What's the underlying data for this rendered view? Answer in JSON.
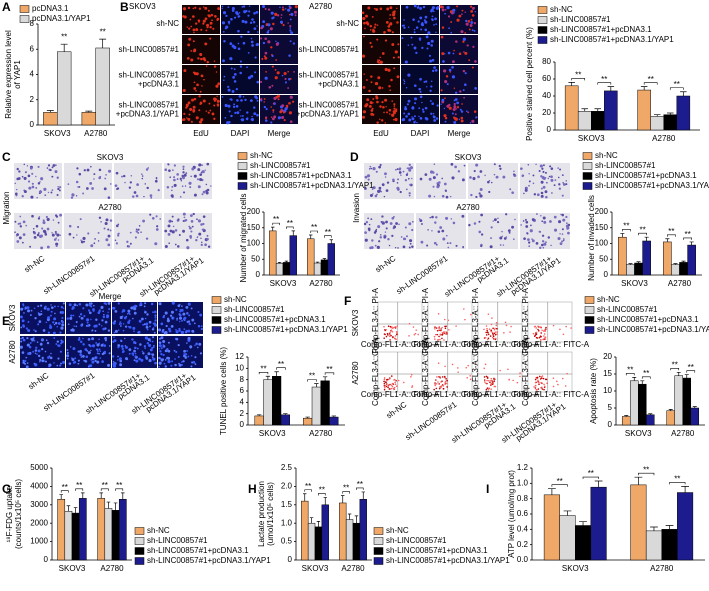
{
  "panels": [
    "A",
    "B",
    "C",
    "D",
    "E",
    "F",
    "G",
    "H",
    "I"
  ],
  "images": {
    "B": {
      "cell_lines": [
        "SKOV3",
        "A2780"
      ],
      "rows": [
        [
          "sh-NC"
        ],
        [
          "sh-LINC00857#1"
        ],
        [
          "sh-LINC00857#1",
          "+pcDNA3.1"
        ],
        [
          "sh-LINC00857#1",
          "+pcDNA3.1/YAP1"
        ]
      ],
      "columns": [
        "EdU",
        "DAPI",
        "Merge"
      ]
    },
    "C": {
      "side_label": "Migration",
      "cell_lines": [
        "SKOV3",
        "A2780"
      ],
      "columns": [
        [
          "sh-NC"
        ],
        [
          "sh-LINC00857#1"
        ],
        [
          "sh-LINC00857#1+",
          "pcDNA3.1"
        ],
        [
          "sh-LINC00857#1+",
          "pcDNA3.1/YAP1"
        ]
      ]
    },
    "D": {
      "side_label": "Invasion",
      "cell_lines": [
        "SKOV3",
        "A2780"
      ],
      "columns": [
        [
          "sh-NC"
        ],
        [
          "sh-LINC00857#1"
        ],
        [
          "sh-LINC00857#1+",
          "pcDNA3.1"
        ],
        [
          "sh-LINC00857#1+",
          "pcDNA3.1/YAP1"
        ]
      ]
    },
    "E": {
      "title": "Merge",
      "cell_lines": [
        "SKOV3",
        "A2780"
      ],
      "columns": [
        [
          "sh-NC"
        ],
        [
          "sh-LINC00857#1"
        ],
        [
          "sh-LINC00857#1+",
          "pcDNA3.1"
        ],
        [
          "sh-LINC00857#1+",
          "pcDNA3.1/YAP1"
        ]
      ]
    },
    "F": {
      "cell_lines": [
        "SKOV3",
        "A2780"
      ],
      "x_axis": "Comp-FL1-A:: FITC-A",
      "y_axis": "Comp-FL3-A:: PI-A",
      "columns": [
        [
          "sh-NC"
        ],
        [
          "sh-LINC00857#1"
        ],
        [
          "sh-LINC00857#1+",
          "pcDNA3.1"
        ],
        [
          "sh-LINC00857#1+",
          "pcDNA3.1/YAP1"
        ]
      ]
    }
  },
  "chart_data": [
    {
      "type": "bar",
      "ylabel": [
        "Relative expression level",
        "of YAP1"
      ],
      "categories": [
        "SKOV3",
        "A2780"
      ],
      "series": [
        {
          "name": "pcDNA3.1",
          "color": "#f0a868",
          "values": [
            1.0,
            1.0
          ],
          "errors": [
            0.15,
            0.1
          ]
        },
        {
          "name": "pcDNA3.1/YAP1",
          "color": "#d9d9d9",
          "values": [
            5.8,
            6.1
          ],
          "errors": [
            0.6,
            0.7
          ]
        }
      ],
      "ylim": [
        0,
        8
      ],
      "yticks": [
        0,
        2,
        4,
        6,
        8
      ],
      "significance": [
        "**",
        "**"
      ]
    },
    {
      "type": "bar",
      "ylabel": [
        "Positive stained cell percent (%)"
      ],
      "categories": [
        "SKOV3",
        "A2780"
      ],
      "series": [
        {
          "name": "sh-NC",
          "color": "#f0a868",
          "values": [
            52,
            47
          ],
          "errors": [
            4,
            4
          ]
        },
        {
          "name": "sh-LINC00857#1",
          "color": "#d9d9d9",
          "values": [
            22,
            16
          ],
          "errors": [
            3,
            2
          ]
        },
        {
          "name": "sh-LINC00857#1+pcDNA3.1",
          "color": "#000000",
          "values": [
            22,
            18
          ],
          "errors": [
            3,
            2
          ]
        },
        {
          "name": "sh-LINC00857#1+pcDNA3.1/YAP1",
          "color": "#1c1c8f",
          "values": [
            46,
            40
          ],
          "errors": [
            5,
            5
          ]
        }
      ],
      "ylim": [
        0,
        80
      ],
      "yticks": [
        0,
        20,
        40,
        60,
        80
      ],
      "significance": [
        "**",
        "**",
        "**",
        "**"
      ]
    },
    {
      "type": "bar",
      "ylabel": [
        "Number of migrated cells"
      ],
      "categories": [
        "SKOV3",
        "A2780"
      ],
      "series": [
        {
          "name": "sh-NC",
          "color": "#f0a868",
          "values": [
            140,
            115
          ],
          "errors": [
            12,
            12
          ]
        },
        {
          "name": "sh-LINC00857#1",
          "color": "#d9d9d9",
          "values": [
            37,
            38
          ],
          "errors": [
            3,
            3
          ]
        },
        {
          "name": "sh-LINC00857#1+pcDNA3.1",
          "color": "#000000",
          "values": [
            40,
            48
          ],
          "errors": [
            4,
            4
          ]
        },
        {
          "name": "sh-LINC00857#1+pcDNA3.1/YAP1",
          "color": "#1c1c8f",
          "values": [
            125,
            100
          ],
          "errors": [
            15,
            12
          ]
        }
      ],
      "ylim": [
        0,
        200
      ],
      "yticks": [
        0,
        50,
        100,
        150,
        200
      ],
      "significance": [
        "**",
        "**",
        "**",
        "**"
      ]
    },
    {
      "type": "bar",
      "ylabel": [
        "Number of invaded cells"
      ],
      "categories": [
        "SKOV3",
        "A2780"
      ],
      "series": [
        {
          "name": "sh-NC",
          "color": "#f0a868",
          "values": [
            120,
            105
          ],
          "errors": [
            12,
            10
          ]
        },
        {
          "name": "sh-LINC00857#1",
          "color": "#d9d9d9",
          "values": [
            33,
            33
          ],
          "errors": [
            3,
            3
          ]
        },
        {
          "name": "sh-LINC00857#1+pcDNA3.1",
          "color": "#000000",
          "values": [
            38,
            40
          ],
          "errors": [
            4,
            4
          ]
        },
        {
          "name": "sh-LINC00857#1+pcDNA3.1/YAP1",
          "color": "#1c1c8f",
          "values": [
            108,
            95
          ],
          "errors": [
            12,
            10
          ]
        }
      ],
      "ylim": [
        0,
        200
      ],
      "yticks": [
        0,
        50,
        100,
        150,
        200
      ],
      "significance": [
        "**",
        "**",
        "**",
        "**"
      ]
    },
    {
      "type": "bar",
      "ylabel": [
        "TUNEL positive cells (%)"
      ],
      "categories": [
        "SKOV3",
        "A2780"
      ],
      "series": [
        {
          "name": "sh-NC",
          "color": "#f0a868",
          "values": [
            1.6,
            1.2
          ],
          "errors": [
            0.2,
            0.2
          ]
        },
        {
          "name": "sh-LINC00857#1",
          "color": "#d9d9d9",
          "values": [
            8.0,
            6.7
          ],
          "errors": [
            0.6,
            0.6
          ]
        },
        {
          "name": "sh-LINC00857#1+pcDNA3.1",
          "color": "#000000",
          "values": [
            8.6,
            7.8
          ],
          "errors": [
            0.8,
            0.7
          ]
        },
        {
          "name": "sh-LINC00857#1+pcDNA3.1/YAP1",
          "color": "#1c1c8f",
          "values": [
            1.8,
            1.4
          ],
          "errors": [
            0.2,
            0.2
          ]
        }
      ],
      "ylim": [
        0,
        12
      ],
      "yticks": [
        0,
        2,
        4,
        6,
        8,
        10,
        12
      ],
      "significance": [
        "**",
        "**",
        "**",
        "**"
      ]
    },
    {
      "type": "bar",
      "ylabel": [
        "Apoptosis rate (%)"
      ],
      "categories": [
        "SKOV3",
        "A2780"
      ],
      "series": [
        {
          "name": "sh-NC",
          "color": "#f0a868",
          "values": [
            2.5,
            4.2
          ],
          "errors": [
            0.3,
            0.4
          ]
        },
        {
          "name": "sh-LINC00857#1",
          "color": "#d9d9d9",
          "values": [
            13,
            14.5
          ],
          "errors": [
            1,
            1
          ]
        },
        {
          "name": "sh-LINC00857#1+pcDNA3.1",
          "color": "#000000",
          "values": [
            12,
            13.8
          ],
          "errors": [
            1,
            1
          ]
        },
        {
          "name": "sh-LINC00857#1+pcDNA3.1/YAP1",
          "color": "#1c1c8f",
          "values": [
            3,
            5
          ],
          "errors": [
            0.3,
            0.4
          ]
        }
      ],
      "ylim": [
        0,
        20
      ],
      "yticks": [
        0,
        5,
        10,
        15,
        20
      ],
      "significance": [
        "**",
        "**",
        "**",
        "**"
      ]
    },
    {
      "type": "bar",
      "ylabel": [
        "¹⁸F-FDG uptake",
        "(counts/1x10⁵ cells)"
      ],
      "categories": [
        "SKOV3",
        "A2780"
      ],
      "series": [
        {
          "name": "sh-NC",
          "color": "#f0a868",
          "values": [
            3300,
            3350
          ],
          "errors": [
            250,
            300
          ]
        },
        {
          "name": "sh-LINC00857#1",
          "color": "#d9d9d9",
          "values": [
            2650,
            2800
          ],
          "errors": [
            300,
            350
          ]
        },
        {
          "name": "sh-LINC00857#1+pcDNA3.1",
          "color": "#000000",
          "values": [
            2550,
            2700
          ],
          "errors": [
            300,
            400
          ]
        },
        {
          "name": "sh-LINC00857#1+pcDNA3.1/YAP1",
          "color": "#1c1c8f",
          "values": [
            3350,
            3300
          ],
          "errors": [
            300,
            350
          ]
        }
      ],
      "ylim": [
        0,
        5000
      ],
      "yticks": [
        0,
        1000,
        2000,
        3000,
        4000,
        5000
      ],
      "significance": [
        "**",
        "**",
        "**",
        "**"
      ]
    },
    {
      "type": "bar",
      "ylabel": [
        "Lactate production",
        "(umol/1x10⁵ cells)"
      ],
      "categories": [
        "SKOV3",
        "A2780"
      ],
      "series": [
        {
          "name": "sh-NC",
          "color": "#f0a868",
          "values": [
            1.6,
            1.55
          ],
          "errors": [
            0.2,
            0.2
          ]
        },
        {
          "name": "sh-LINC00857#1",
          "color": "#d9d9d9",
          "values": [
            1.0,
            1.1
          ],
          "errors": [
            0.15,
            0.15
          ]
        },
        {
          "name": "sh-LINC00857#1+pcDNA3.1",
          "color": "#000000",
          "values": [
            0.9,
            1.0
          ],
          "errors": [
            0.15,
            0.2
          ]
        },
        {
          "name": "sh-LINC00857#1+pcDNA3.1/YAP1",
          "color": "#1c1c8f",
          "values": [
            1.5,
            1.65
          ],
          "errors": [
            0.2,
            0.2
          ]
        }
      ],
      "ylim": [
        0,
        2.5
      ],
      "yticks": [
        0,
        0.5,
        {
          "value": 1,
          "label": "1.0"
        },
        1.5,
        {
          "value": 2,
          "label": "2.0"
        },
        2.5
      ],
      "significance": [
        "**",
        "**",
        "**",
        "**"
      ]
    },
    {
      "type": "bar",
      "ylabel": [
        "ATP level (umol/mg prot)"
      ],
      "categories": [
        "SKOV3",
        "A2780"
      ],
      "series": [
        {
          "color": "#f0a868",
          "values": [
            0.85,
            0.98
          ],
          "errors": [
            0.08,
            0.1
          ]
        },
        {
          "color": "#d9d9d9",
          "values": [
            0.58,
            0.38
          ],
          "errors": [
            0.06,
            0.05
          ]
        },
        {
          "color": "#000000",
          "values": [
            0.45,
            0.4
          ],
          "errors": [
            0.05,
            0.05
          ]
        },
        {
          "color": "#1c1c8f",
          "values": [
            0.95,
            0.88
          ],
          "errors": [
            0.08,
            0.08
          ]
        }
      ],
      "ylim": [
        0,
        1.2
      ],
      "yticks": [
        {
          "value": 0,
          "label": "0.0"
        },
        0.2,
        0.4,
        0.6,
        0.8,
        {
          "value": 1,
          "label": "1.0"
        },
        1.2
      ],
      "significance": [
        "**",
        "**",
        "**",
        "**"
      ]
    }
  ]
}
